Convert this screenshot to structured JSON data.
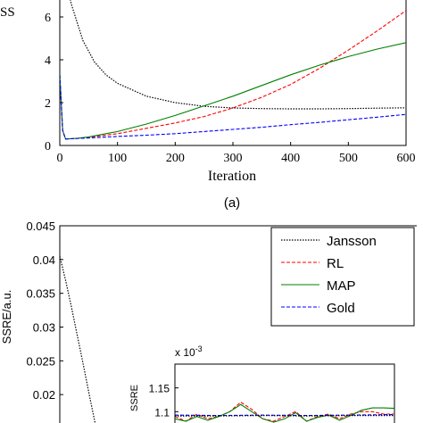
{
  "top_panel": {
    "ylabel": "SS",
    "xlabel": "Iteration",
    "panel_label": "(a)"
  },
  "bottom_panel": {
    "ylabel": "SSRE/a.u.",
    "inset": {
      "ylabel": "SSRE",
      "exponent_label": "x 10",
      "exponent": "-3"
    }
  },
  "colors": {
    "jansson": "#000000",
    "rl": "#ff0000",
    "map": "#008000",
    "gold": "#0000ff"
  },
  "chart_data": [
    {
      "type": "line",
      "id": "top",
      "xlabel": "Iteration",
      "ylabel": "SS",
      "xlim": [
        0,
        600
      ],
      "ylim": [
        0,
        7
      ],
      "xticks": [
        0,
        100,
        200,
        300,
        400,
        500,
        600
      ],
      "yticks": [
        0,
        2,
        4,
        6
      ],
      "series": [
        {
          "key": "jansson",
          "x": [
            10,
            20,
            40,
            60,
            80,
            100,
            150,
            200,
            250,
            300,
            350,
            400,
            450,
            500,
            550,
            600
          ],
          "y": [
            7.8,
            6.6,
            4.9,
            3.9,
            3.3,
            2.9,
            2.3,
            2.0,
            1.83,
            1.75,
            1.72,
            1.71,
            1.71,
            1.72,
            1.74,
            1.76
          ]
        },
        {
          "key": "rl",
          "x": [
            0,
            5,
            10,
            30,
            50,
            100,
            150,
            200,
            250,
            300,
            350,
            400,
            450,
            500,
            550,
            600
          ],
          "y": [
            3.3,
            0.7,
            0.3,
            0.33,
            0.38,
            0.55,
            0.8,
            1.05,
            1.35,
            1.75,
            2.25,
            2.85,
            3.6,
            4.45,
            5.35,
            6.3
          ]
        },
        {
          "key": "map",
          "x": [
            0,
            5,
            10,
            30,
            50,
            100,
            150,
            200,
            250,
            300,
            350,
            400,
            450,
            500,
            550,
            600
          ],
          "y": [
            3.3,
            0.7,
            0.3,
            0.33,
            0.4,
            0.65,
            1.0,
            1.4,
            1.85,
            2.3,
            2.8,
            3.3,
            3.75,
            4.15,
            4.5,
            4.8
          ]
        },
        {
          "key": "gold",
          "x": [
            0,
            5,
            10,
            30,
            50,
            100,
            150,
            200,
            250,
            300,
            350,
            400,
            450,
            500,
            550,
            600
          ],
          "y": [
            3.3,
            0.7,
            0.3,
            0.33,
            0.35,
            0.42,
            0.48,
            0.55,
            0.65,
            0.75,
            0.85,
            0.97,
            1.08,
            1.2,
            1.32,
            1.45
          ]
        }
      ]
    },
    {
      "type": "line",
      "id": "bottom",
      "ylabel": "SSRE/a.u.",
      "xlim": [
        0,
        600
      ],
      "ylim": [
        0.015,
        0.045
      ],
      "yticks": [
        0.02,
        0.025,
        0.03,
        0.035,
        0.04,
        0.045
      ],
      "ytick_labels": [
        "0.02",
        "0.025",
        "0.03",
        "0.035",
        "0.04",
        "0.045"
      ],
      "legend": [
        "Jansson",
        "RL",
        "MAP",
        "Gold"
      ],
      "legend_position": "top-right",
      "series": [
        {
          "name": "Jansson",
          "key": "jansson",
          "x": [
            0,
            10,
            20,
            30,
            40,
            50,
            60
          ],
          "y": [
            0.0405,
            0.0368,
            0.0328,
            0.0285,
            0.0242,
            0.0198,
            0.0155
          ]
        }
      ],
      "inset": {
        "ylabel": "SSRE",
        "scale_label": "x 10^-3",
        "ylim": [
          1.05,
          1.2
        ],
        "yticks": [
          1.1,
          1.15
        ],
        "ytick_labels": [
          "1.1",
          "1.15"
        ],
        "series": [
          {
            "key": "rl",
            "x": [
              0,
              0.05,
              0.1,
              0.15,
              0.2,
              0.25,
              0.3,
              0.35,
              0.4,
              0.45,
              0.5,
              0.55,
              0.6,
              0.65,
              0.7,
              0.75,
              0.8,
              0.85,
              0.9,
              0.95,
              1.0
            ],
            "y": [
              1.09,
              1.08,
              1.095,
              1.085,
              1.09,
              1.1,
              1.12,
              1.105,
              1.085,
              1.08,
              1.09,
              1.1,
              1.08,
              1.09,
              1.095,
              1.085,
              1.095,
              1.1,
              1.1,
              1.095,
              1.095
            ]
          },
          {
            "key": "map",
            "x": [
              0,
              0.05,
              0.1,
              0.15,
              0.2,
              0.25,
              0.3,
              0.35,
              0.4,
              0.45,
              0.5,
              0.55,
              0.6,
              0.65,
              0.7,
              0.75,
              0.8,
              0.85,
              0.9,
              0.95,
              1.0
            ],
            "y": [
              1.085,
              1.08,
              1.09,
              1.082,
              1.09,
              1.1,
              1.115,
              1.1,
              1.085,
              1.078,
              1.085,
              1.098,
              1.08,
              1.088,
              1.093,
              1.082,
              1.092,
              1.103,
              1.108,
              1.108,
              1.107
            ]
          },
          {
            "key": "gold",
            "x": [
              0,
              0.2,
              0.4,
              0.6,
              0.8,
              1.0
            ],
            "y": [
              1.093,
              1.092,
              1.093,
              1.092,
              1.093,
              1.094
            ]
          },
          {
            "key": "jansson",
            "x": [
              0,
              0.2,
              0.4,
              0.6,
              0.8,
              1.0
            ],
            "y": [
              1.091,
              1.091,
              1.092,
              1.091,
              1.092,
              1.092
            ]
          }
        ]
      }
    }
  ]
}
